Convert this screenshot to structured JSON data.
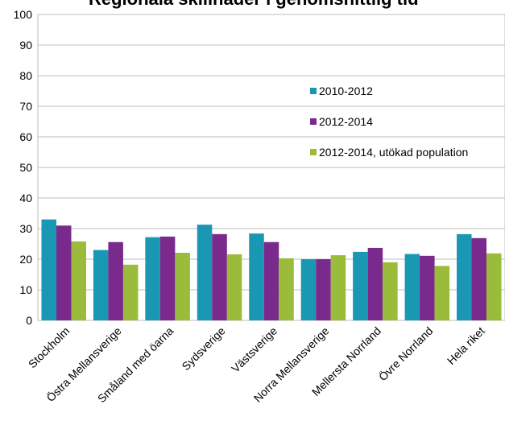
{
  "chart_data": {
    "type": "bar",
    "title": "Regionala skillnader i genomsnittlig tid",
    "xlabel": "",
    "ylabel": "",
    "ylim": [
      0,
      100
    ],
    "yticks": [
      0,
      10,
      20,
      30,
      40,
      50,
      60,
      70,
      80,
      90,
      100
    ],
    "grid": true,
    "legend_position": "right",
    "categories": [
      "Stockholm",
      "Östra Mellansverige",
      "Småland med öarna",
      "Sydsverige",
      "Västsverige",
      "Norra Mellansverige",
      "Mellersta Norrland",
      "Övre Norrland",
      "Hela riket"
    ],
    "series": [
      {
        "name": "2010-2012",
        "color": "#1a97b3",
        "values": [
          33,
          23,
          27.2,
          31.3,
          28.4,
          20,
          22.4,
          21.7,
          28.2
        ]
      },
      {
        "name": "2012-2014",
        "color": "#7a2a8c",
        "values": [
          31,
          25.6,
          27.4,
          28.2,
          25.6,
          20,
          23.7,
          21.1,
          26.9
        ]
      },
      {
        "name": "2012-2014, utökad population",
        "color": "#9bbb3a",
        "values": [
          25.8,
          18.2,
          22.1,
          21.6,
          20.3,
          21.3,
          19,
          17.8,
          21.9
        ]
      }
    ]
  }
}
